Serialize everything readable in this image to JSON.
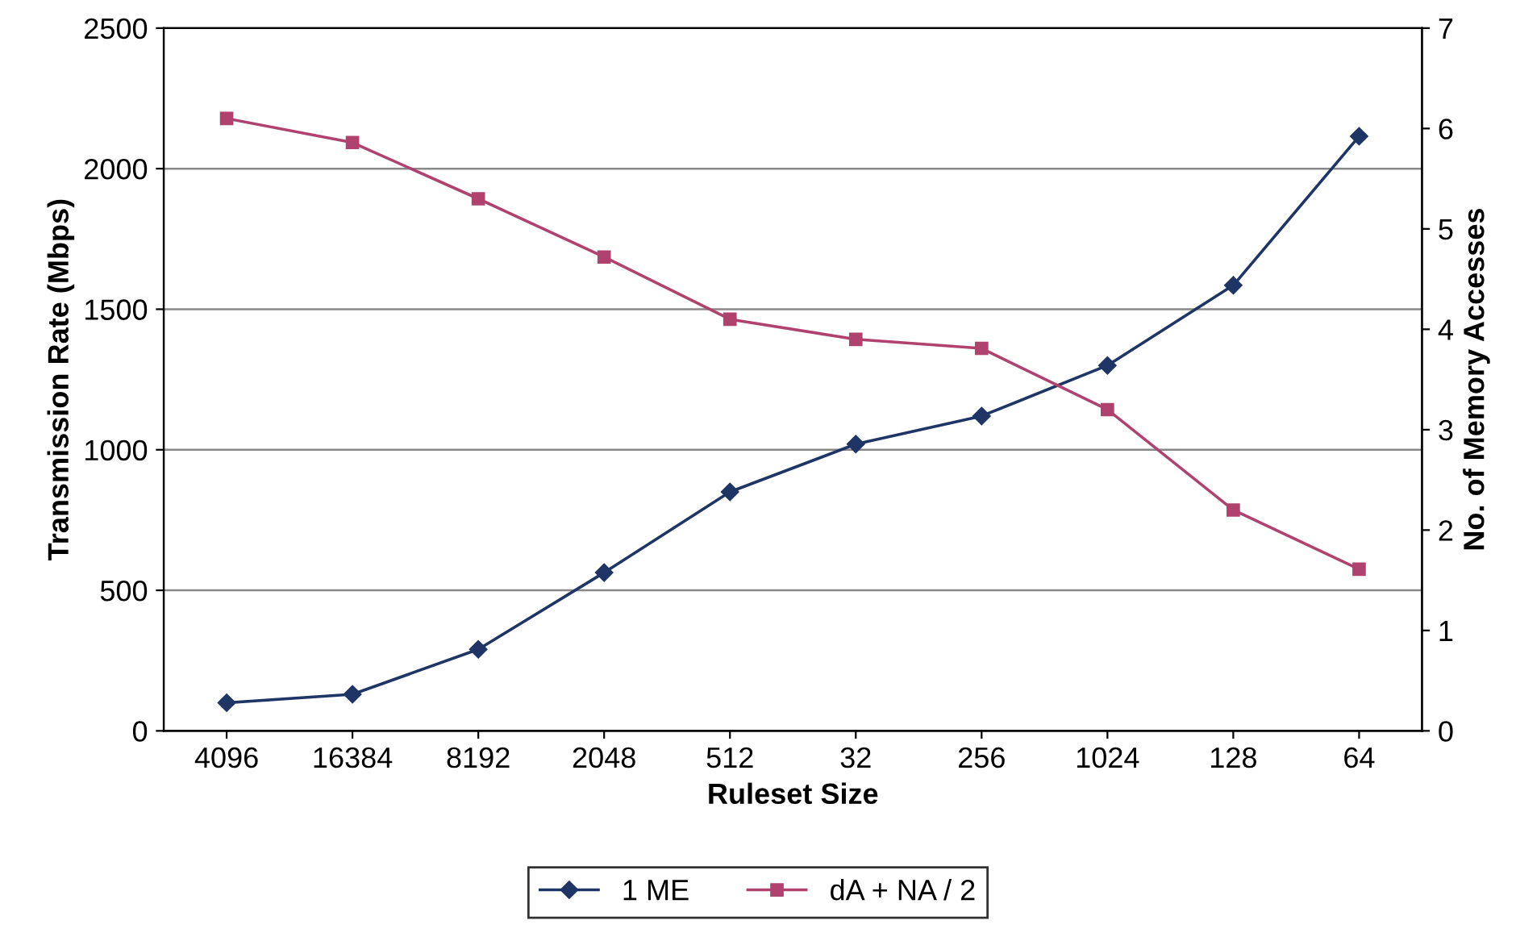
{
  "chart_data": {
    "type": "line",
    "xlabel": "Ruleset Size",
    "ylabel": "Transmission Rate (Mbps)",
    "y2label": "No. of Memory Accesses",
    "categories": [
      "4096",
      "16384",
      "8192",
      "2048",
      "512",
      "32",
      "256",
      "1024",
      "128",
      "64"
    ],
    "series": [
      {
        "name": "1 ME",
        "color": "#1f3566",
        "marker": "diamond",
        "values": [
          100,
          130,
          290,
          563,
          850,
          1020,
          1120,
          1300,
          1585,
          2115
        ]
      },
      {
        "name": "dA + NA / 2",
        "color": "#b0426f",
        "marker": "square",
        "axis": "y2",
        "values": [
          6.1,
          5.86,
          5.3,
          4.72,
          4.1,
          3.9,
          3.81,
          3.2,
          2.2,
          1.61
        ]
      }
    ],
    "ylim": [
      0,
      2500
    ],
    "yticks": [
      0,
      500,
      1000,
      1500,
      2000,
      2500
    ],
    "y2lim": [
      0,
      7
    ],
    "y2ticks": [
      0,
      1,
      2,
      3,
      4,
      5,
      6,
      7
    ],
    "grid": "y",
    "legend": "bottom",
    "line_style": "solid"
  }
}
